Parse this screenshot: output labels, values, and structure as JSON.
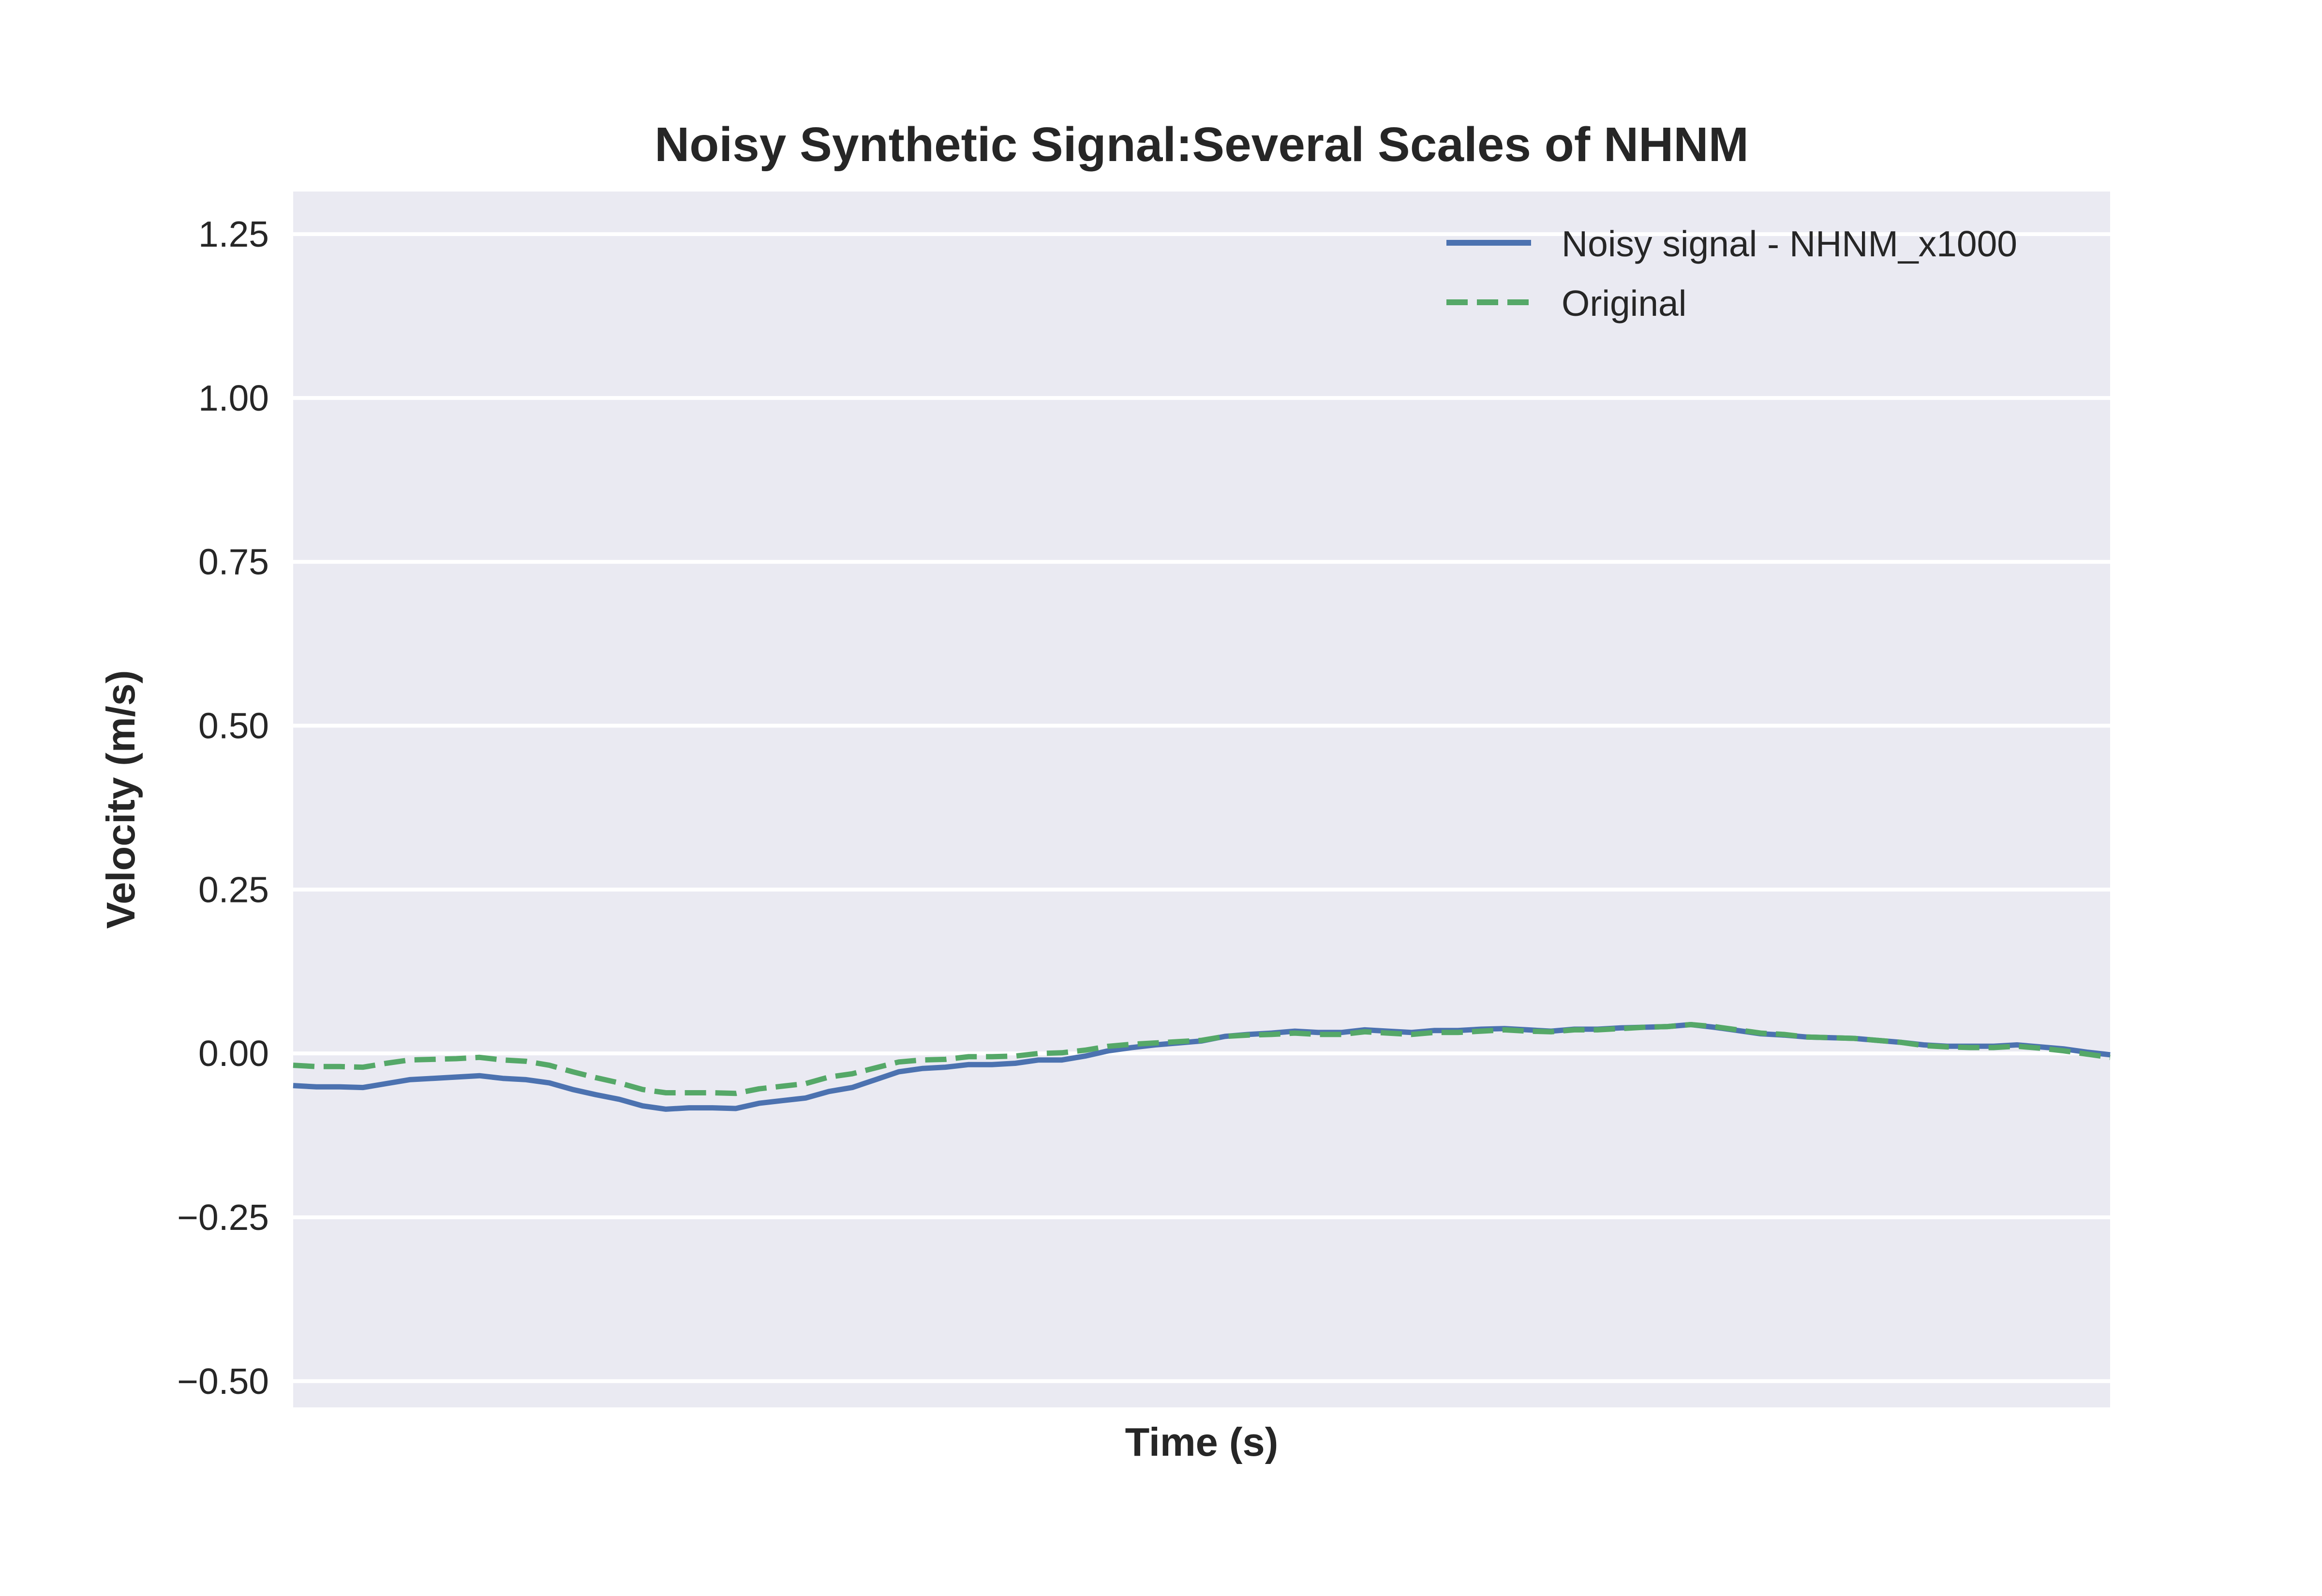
{
  "chart_data": {
    "type": "line",
    "title": "Noisy Synthetic Signal:Several Scales of NHNM",
    "xlabel": "Time (s)",
    "ylabel": "Velocity (m/s)",
    "ylim": [
      -0.54,
      1.315
    ],
    "yticks": [
      -0.5,
      -0.25,
      0.0,
      0.25,
      0.5,
      0.75,
      1.0,
      1.25
    ],
    "ytick_labels": [
      "−0.50",
      "−0.25",
      "0.00",
      "0.25",
      "0.50",
      "0.75",
      "1.00",
      "1.25"
    ],
    "xticks_visible": false,
    "grid": true,
    "legend_position": "upper right",
    "x": [
      0,
      0.5,
      1,
      1.5,
      2,
      2.5,
      3,
      3.5,
      4,
      4.5,
      5,
      5.5,
      6,
      6.5,
      7,
      7.5,
      8,
      8.5,
      9,
      9.5,
      10,
      10.5,
      11,
      11.5,
      12,
      12.5,
      13,
      13.5,
      14,
      14.5,
      15,
      15.5,
      16,
      16.5,
      17,
      17.5,
      18,
      18.5,
      19,
      19.5,
      20,
      20.5,
      21,
      21.5,
      22,
      22.5,
      23,
      23.5,
      24,
      24.5,
      25,
      25.5,
      26,
      26.5,
      27,
      27.5,
      28,
      28.5,
      29,
      29.5,
      30,
      30.5,
      31,
      31.5,
      32,
      32.5,
      33,
      33.5,
      34,
      34.5,
      35,
      35.5,
      36,
      36.5,
      37,
      37.5,
      38,
      38.5,
      39
    ],
    "series": [
      {
        "name": "Noisy signal - NHNM_x1000",
        "color": "#4c72b0",
        "style": "solid",
        "values": [
          -0.049,
          -0.051,
          -0.051,
          -0.052,
          -0.046,
          -0.04,
          -0.038,
          -0.036,
          -0.034,
          -0.038,
          -0.04,
          -0.045,
          -0.055,
          -0.063,
          -0.07,
          -0.08,
          -0.085,
          -0.083,
          -0.083,
          -0.084,
          -0.076,
          -0.072,
          -0.068,
          -0.058,
          -0.052,
          -0.04,
          -0.028,
          -0.023,
          -0.021,
          -0.017,
          -0.017,
          -0.015,
          -0.01,
          -0.01,
          -0.004,
          0.004,
          0.009,
          0.013,
          0.016,
          0.019,
          0.026,
          0.029,
          0.031,
          0.034,
          0.032,
          0.032,
          0.036,
          0.034,
          0.032,
          0.035,
          0.035,
          0.037,
          0.038,
          0.036,
          0.034,
          0.037,
          0.037,
          0.039,
          0.04,
          0.041,
          0.044,
          0.04,
          0.035,
          0.03,
          0.028,
          0.025,
          0.024,
          0.023,
          0.02,
          0.017,
          0.013,
          0.011,
          0.011,
          0.011,
          0.013,
          0.01,
          0.007,
          0.002,
          -0.002
        ]
      },
      {
        "name": "Original",
        "color": "#55a868",
        "style": "dashed",
        "values": [
          -0.018,
          -0.02,
          -0.02,
          -0.021,
          -0.015,
          -0.01,
          -0.009,
          -0.008,
          -0.006,
          -0.01,
          -0.012,
          -0.018,
          -0.028,
          -0.037,
          -0.045,
          -0.055,
          -0.06,
          -0.06,
          -0.06,
          -0.061,
          -0.054,
          -0.05,
          -0.046,
          -0.036,
          -0.031,
          -0.022,
          -0.013,
          -0.01,
          -0.009,
          -0.005,
          -0.005,
          -0.004,
          0.0,
          0.001,
          0.005,
          0.011,
          0.014,
          0.016,
          0.018,
          0.02,
          0.026,
          0.028,
          0.029,
          0.031,
          0.029,
          0.029,
          0.033,
          0.031,
          0.029,
          0.032,
          0.032,
          0.034,
          0.036,
          0.034,
          0.033,
          0.036,
          0.036,
          0.038,
          0.04,
          0.041,
          0.044,
          0.041,
          0.036,
          0.031,
          0.029,
          0.025,
          0.024,
          0.023,
          0.02,
          0.017,
          0.012,
          0.01,
          0.009,
          0.009,
          0.011,
          0.008,
          0.004,
          -0.001,
          -0.006
        ]
      }
    ]
  }
}
